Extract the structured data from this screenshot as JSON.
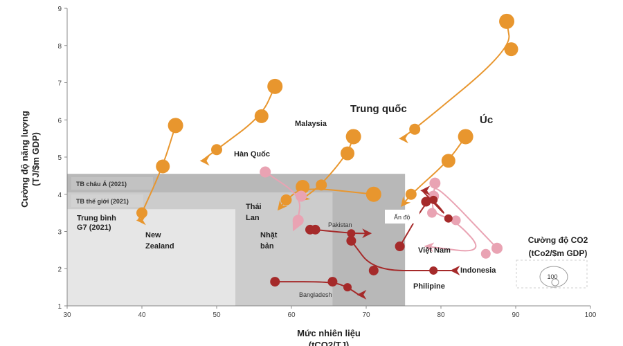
{
  "chart_data": {
    "type": "scatter",
    "xlabel_lines": [
      "Mức nhiên liệu",
      "(tCO2/TJ)"
    ],
    "ylabel_lines": [
      "Cường độ năng lượng",
      "(TJ/$m GDP)"
    ],
    "xlim": [
      30,
      100
    ],
    "ylim": [
      1,
      9
    ],
    "x_ticks": [
      "30",
      "40",
      "50",
      "60",
      "70",
      "80",
      "90",
      "100"
    ],
    "y_ticks": [
      "1",
      "2",
      "3",
      "4",
      "5",
      "6",
      "7",
      "8",
      "9"
    ],
    "colors": {
      "orange": "#E8962E",
      "pink": "#E9A3B3",
      "darkred": "#A52A2A",
      "band_dark": "#B8B8B8",
      "band_mid": "#CCCCCC",
      "band_light": "#E6E6E6"
    },
    "regions": [
      {
        "label": "TB châu Á (2021)",
        "x": [
          30,
          75.2
        ],
        "y": [
          1,
          4.55
        ],
        "color": "band_dark"
      },
      {
        "label": "TB thế giới (2021)",
        "x": [
          30,
          65.5
        ],
        "y": [
          1,
          4.05
        ],
        "color": "band_mid"
      },
      {
        "label": "",
        "x": [
          30,
          52.5
        ],
        "y": [
          1,
          3.6
        ],
        "color": "band_light"
      }
    ],
    "series": [
      {
        "label": "Hàn Quốc",
        "color": "orange",
        "points": [
          [
            57.8,
            6.9
          ],
          [
            56.0,
            6.1
          ],
          [
            50.0,
            5.2
          ]
        ],
        "arrow_to": [
          48.0,
          4.9
        ]
      },
      {
        "label": "New Zealand",
        "color": "orange",
        "points": [
          [
            44.5,
            5.85
          ],
          [
            42.8,
            4.75
          ],
          [
            40.0,
            3.5
          ]
        ],
        "arrow_to": [
          39.5,
          3.3
        ]
      },
      {
        "label": "Malaysia",
        "color": "orange",
        "points": [
          [
            68.3,
            5.55
          ],
          [
            67.5,
            5.1
          ],
          [
            64.0,
            4.25
          ]
        ],
        "arrow_to": [
          61.3,
          3.85
        ]
      },
      {
        "label": "Thái Lan",
        "color": "orange",
        "points": [
          [
            71.0,
            4.0
          ],
          [
            61.5,
            4.2
          ],
          [
            59.3,
            3.85
          ]
        ],
        "arrow_to": [
          58.3,
          3.6
        ]
      },
      {
        "label": "Trung quốc",
        "color": "orange",
        "points": [
          [
            88.8,
            8.65
          ],
          [
            89.4,
            7.9
          ],
          [
            76.5,
            5.75
          ]
        ],
        "arrow_to": [
          74.6,
          5.5
        ]
      },
      {
        "label": "Úc",
        "color": "orange",
        "points": [
          [
            83.3,
            5.55
          ],
          [
            81.0,
            4.9
          ],
          [
            76.0,
            4.0
          ]
        ],
        "arrow_to": [
          74.8,
          3.7
        ]
      },
      {
        "label": "Nhật bản",
        "color": "pink",
        "points": [
          [
            56.5,
            4.6
          ],
          [
            61.3,
            3.95
          ],
          [
            60.9,
            3.3
          ]
        ],
        "arrow_to": [
          60.3,
          3.05
        ]
      },
      {
        "label": "Indonesia",
        "color": "pink",
        "points": [
          [
            87.5,
            2.55
          ],
          [
            79.2,
            4.3
          ],
          [
            79.0,
            3.95
          ],
          [
            78.8,
            3.5
          ],
          [
            82.0,
            3.3
          ],
          [
            86.0,
            2.4
          ]
        ],
        "arrow_to": [
          78.0,
          2.6
        ]
      },
      {
        "label": "Ấn độ",
        "color": "pink",
        "points": [],
        "arrow_to": null
      },
      {
        "label": "Pakistan",
        "color": "darkred",
        "points": [
          [
            62.5,
            3.05
          ],
          [
            63.2,
            3.05
          ],
          [
            68.0,
            2.95
          ]
        ],
        "arrow_to": [
          70.5,
          2.95
        ]
      },
      {
        "label": "Việt Nam",
        "color": "darkred",
        "points": [
          [
            74.5,
            2.6
          ],
          [
            78.0,
            3.8
          ],
          [
            79.0,
            3.85
          ],
          [
            81.0,
            3.35
          ]
        ],
        "arrow_to": [
          77.5,
          4.1
        ]
      },
      {
        "label": "Philipine",
        "color": "darkred",
        "points": [
          [
            68.0,
            2.75
          ],
          [
            71.0,
            1.95
          ],
          [
            79.0,
            1.95
          ]
        ],
        "arrow_to": [
          81.5,
          1.95
        ]
      },
      {
        "label": "Bangladesh",
        "color": "darkred",
        "points": [
          [
            57.8,
            1.65
          ],
          [
            65.5,
            1.65
          ],
          [
            67.5,
            1.5
          ]
        ],
        "arrow_to": [
          69.0,
          1.3
        ]
      }
    ],
    "annotations": [
      {
        "text": "Trung bình",
        "x": 31.3,
        "y": 3.3
      },
      {
        "text": "G7 (2021)",
        "x": 31.3,
        "y": 3.05
      }
    ],
    "legend": {
      "title_lines": [
        "Cường độ CO2",
        "(tCo2/$m GDP)"
      ],
      "bubble_label": "100",
      "placement": "bottom-right"
    }
  }
}
